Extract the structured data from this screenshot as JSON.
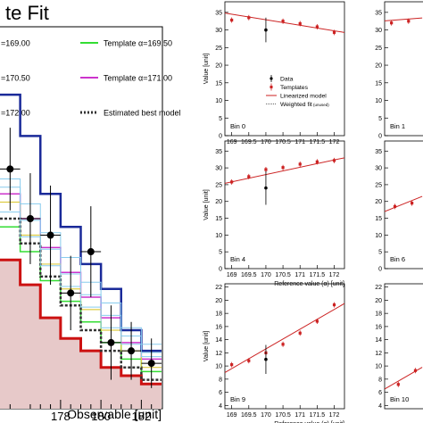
{
  "chart_data": [
    {
      "type": "step",
      "title": "te Fit",
      "xlabel": "Observable [unit]",
      "xticks": [
        "178",
        "180",
        "182"
      ],
      "x_edges": [
        175,
        176,
        177,
        178,
        179,
        180,
        181,
        182,
        183
      ],
      "legend": [
        {
          "label": "=169.00",
          "color": "#000000",
          "style": "none"
        },
        {
          "label": "Template α=169.50",
          "color": "#33dd33",
          "style": "solid"
        },
        {
          "label": "=170.50",
          "color": "#000000",
          "style": "none"
        },
        {
          "label": "Template α=171.00",
          "color": "#cc33cc",
          "style": "solid"
        },
        {
          "label": "=172.00",
          "color": "#000000",
          "style": "none"
        },
        {
          "label": "Estimated best model",
          "color": "#333333",
          "style": "dotted"
        }
      ],
      "series": [
        {
          "name": "α=169.00",
          "color": "#cc1111",
          "width": 3,
          "fill": "#e7c9c9",
          "values": [
            3.4,
            3.1,
            2.7,
            2.45,
            2.3,
            2.1,
            2.0,
            1.9
          ]
        },
        {
          "name": "α=169.50",
          "color": "#33dd33",
          "width": 1.5,
          "values": [
            3.8,
            3.5,
            3.15,
            2.9,
            2.65,
            2.4,
            2.2,
            2.05
          ]
        },
        {
          "name": "α=171.00",
          "color": "#cc33cc",
          "width": 1.5,
          "values": [
            4.2,
            3.9,
            3.55,
            3.25,
            2.95,
            2.7,
            2.4,
            2.2
          ]
        },
        {
          "name": "α=170.50",
          "color": "#ddcc44",
          "width": 1.2,
          "values": [
            4.1,
            3.7,
            3.35,
            3.05,
            2.8,
            2.55,
            2.3,
            2.1
          ]
        },
        {
          "name": "α=172.00",
          "color": "#1a2a99",
          "width": 2.5,
          "values": [
            5.4,
            4.9,
            4.2,
            3.8,
            3.35,
            3.05,
            2.55,
            2.3
          ]
        },
        {
          "name": "best",
          "color": "#333333",
          "width": 2.5,
          "dash": "3,2",
          "values": [
            3.9,
            3.6,
            3.2,
            2.85,
            2.55,
            2.3,
            2.1,
            1.95
          ]
        }
      ],
      "data_points": [
        {
          "x": 175.5,
          "y": 4.5,
          "err": 0.5
        },
        {
          "x": 176.5,
          "y": 3.9,
          "err": 0.55
        },
        {
          "x": 177.5,
          "y": 3.7,
          "err": 0.6
        },
        {
          "x": 178.5,
          "y": 3.0,
          "err": 0.45
        },
        {
          "x": 179.5,
          "y": 3.5,
          "err": 0.55
        },
        {
          "x": 180.5,
          "y": 2.4,
          "err": 0.45
        },
        {
          "x": 181.5,
          "y": 2.3,
          "err": 0.35
        },
        {
          "x": 182.5,
          "y": 2.15,
          "err": 0.3
        }
      ],
      "ylim": [
        1.6,
        6.2
      ]
    },
    {
      "type": "scatter",
      "panel": "Bin 0",
      "ylabel": "Value [unit]",
      "xlabel": "",
      "xticks": [
        "169",
        "169.5",
        "170",
        "170.5",
        "171",
        "171.5",
        "172"
      ],
      "yticks": [
        "0",
        "5",
        "10",
        "15",
        "20",
        "25",
        "30",
        "35"
      ],
      "ylim": [
        0,
        38
      ],
      "xlim": [
        168.8,
        172.3
      ],
      "templates": [
        {
          "x": 169,
          "y": 32.8
        },
        {
          "x": 169.5,
          "y": 33.5
        },
        {
          "x": 170.5,
          "y": 32.5
        },
        {
          "x": 171,
          "y": 31.8
        },
        {
          "x": 171.5,
          "y": 30.9
        },
        {
          "x": 172,
          "y": 29.3
        }
      ],
      "data": {
        "x": 170,
        "y": 30.0,
        "err": 3.5
      },
      "fit": [
        [
          168.8,
          34.8
        ],
        [
          172.3,
          29.3
        ]
      ],
      "legend": [
        {
          "label": "Data",
          "style": "point"
        },
        {
          "label": "Templates",
          "style": "square"
        },
        {
          "label": "Linearized model",
          "style": "line"
        },
        {
          "label": "Weighted fit",
          "note": "(unused)",
          "style": "dotted"
        }
      ]
    },
    {
      "type": "scatter",
      "panel": "Bin 1",
      "yticks": [
        "0",
        "5",
        "10",
        "15",
        "20",
        "25",
        "30",
        "35"
      ],
      "ylim": [
        0,
        38
      ],
      "templates": [
        {
          "x": 169,
          "y": 32.0
        },
        {
          "x": 169.5,
          "y": 32.5
        }
      ],
      "fit": [
        [
          168.8,
          32.6
        ],
        [
          169.9,
          33.4
        ]
      ]
    },
    {
      "type": "scatter",
      "panel": "Bin 4",
      "ylabel": "Value [unit]",
      "xlabel": "Reference value (α) [unit]",
      "xticks": [
        "169",
        "169.5",
        "170",
        "170.5",
        "171",
        "171.5",
        "172"
      ],
      "yticks": [
        "0",
        "5",
        "10",
        "15",
        "20",
        "25",
        "30",
        "35"
      ],
      "ylim": [
        0,
        38
      ],
      "xlim": [
        168.8,
        172.3
      ],
      "templates": [
        {
          "x": 169,
          "y": 25.8
        },
        {
          "x": 169.5,
          "y": 27.4
        },
        {
          "x": 170,
          "y": 29.5
        },
        {
          "x": 170.5,
          "y": 30.1
        },
        {
          "x": 171,
          "y": 31.1
        },
        {
          "x": 171.5,
          "y": 31.8
        },
        {
          "x": 172,
          "y": 32.2
        }
      ],
      "data": {
        "x": 170,
        "y": 24.0,
        "err": 5.0
      },
      "fit": [
        [
          168.8,
          25.4
        ],
        [
          172.3,
          33.0
        ]
      ]
    },
    {
      "type": "scatter",
      "panel": "Bin 6",
      "yticks": [
        "0",
        "5",
        "10",
        "15",
        "20",
        "25",
        "30",
        "35"
      ],
      "ylim": [
        0,
        38
      ],
      "templates": [
        {
          "x": 169.1,
          "y": 18.5
        },
        {
          "x": 169.6,
          "y": 19.5
        }
      ],
      "fit": [
        [
          168.8,
          17.0
        ],
        [
          169.9,
          21.5
        ]
      ]
    },
    {
      "type": "scatter",
      "panel": "Bin 9",
      "ylabel": "Value [unit]",
      "xlabel": "Reference value (α) [unit]",
      "xticks": [
        "169",
        "169.5",
        "170",
        "170.5",
        "171",
        "171.5",
        "172"
      ],
      "yticks": [
        "4",
        "6",
        "8",
        "10",
        "12",
        "14",
        "16",
        "18",
        "20",
        "22"
      ],
      "ylim": [
        3.5,
        22.5
      ],
      "xlim": [
        168.8,
        172.3
      ],
      "templates": [
        {
          "x": 169,
          "y": 10.2
        },
        {
          "x": 169.5,
          "y": 10.8
        },
        {
          "x": 170,
          "y": 12.0
        },
        {
          "x": 170.5,
          "y": 13.3
        },
        {
          "x": 171,
          "y": 15.0
        },
        {
          "x": 171.5,
          "y": 16.8
        },
        {
          "x": 172,
          "y": 19.3
        }
      ],
      "data": {
        "x": 170,
        "y": 11.0,
        "err": 2.2
      },
      "fit": [
        [
          168.8,
          9.0
        ],
        [
          172.3,
          19.5
        ]
      ]
    },
    {
      "type": "scatter",
      "panel": "Bin 10",
      "yticks": [
        "4",
        "6",
        "8",
        "10",
        "12",
        "14",
        "16",
        "18",
        "20",
        "22"
      ],
      "ylim": [
        3.5,
        22.5
      ],
      "templates": [
        {
          "x": 169.2,
          "y": 7.2
        },
        {
          "x": 169.7,
          "y": 9.3
        }
      ],
      "fit": [
        [
          168.8,
          6.5
        ],
        [
          169.9,
          9.8
        ]
      ]
    }
  ]
}
